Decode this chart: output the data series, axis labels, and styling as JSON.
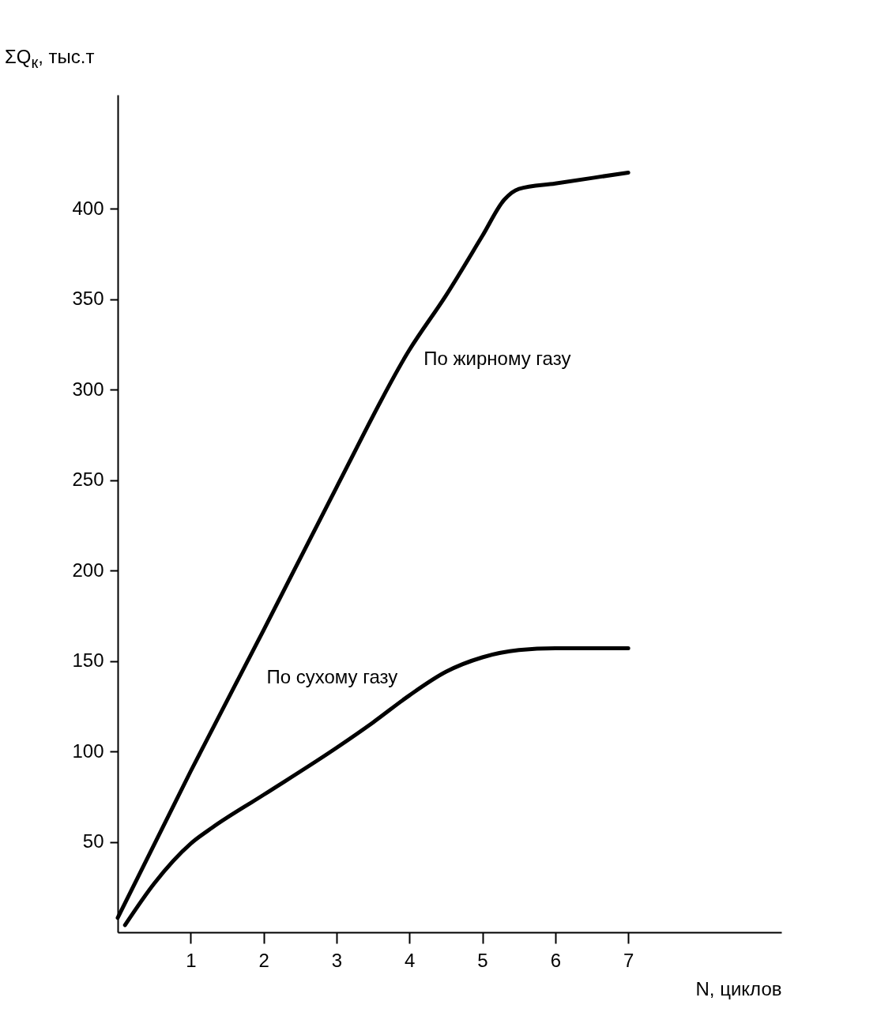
{
  "chart_data": {
    "type": "line",
    "xlabel": "N, циклов",
    "ylabel": "ΣQ$_{к}$, тыс.т",
    "xlim": [
      0,
      9.1
    ],
    "ylim": [
      0,
      463
    ],
    "xticks": [
      1,
      2,
      3,
      4,
      5,
      6,
      7
    ],
    "yticks": [
      50,
      100,
      150,
      200,
      250,
      300,
      350,
      400
    ],
    "grid": false,
    "legend": false,
    "marker": "none",
    "line_style": "solid",
    "series": [
      {
        "name": "По жирному газу",
        "color": "#000000",
        "x": [
          0,
          1,
          2,
          3,
          4,
          4.5,
          5,
          5.3,
          5.5,
          6,
          7
        ],
        "values": [
          8,
          89,
          167,
          246,
          322,
          352,
          385,
          405,
          411,
          414,
          420
        ]
      },
      {
        "name": "По сухому газу",
        "color": "#000000",
        "x": [
          0.1,
          0.5,
          1,
          1.3,
          2,
          3,
          3.5,
          4,
          4.5,
          5,
          5.5,
          6,
          7
        ],
        "values": [
          4,
          27,
          49,
          58,
          76,
          102,
          116,
          131,
          144,
          152,
          156,
          157,
          157
        ]
      }
    ]
  }
}
